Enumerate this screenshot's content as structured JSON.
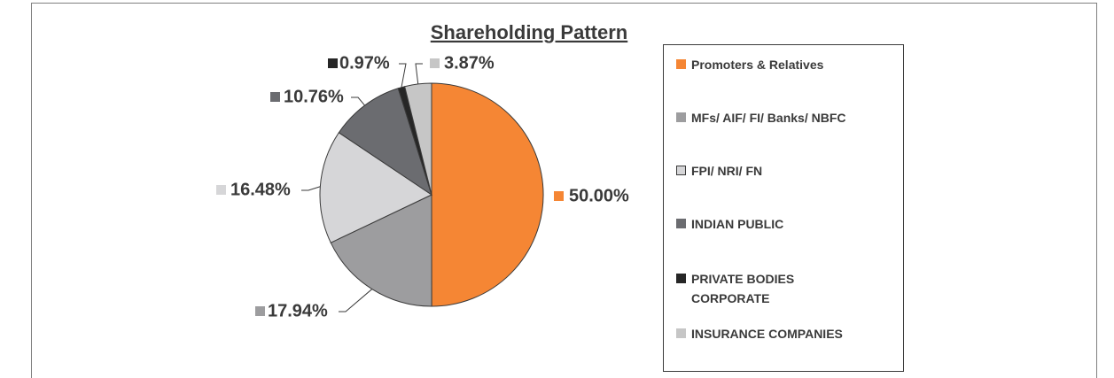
{
  "chart_data": {
    "type": "pie",
    "title": "Shareholding Pattern",
    "categories": [
      "Promoters & Relatives",
      "MFs/ AIF/ FI/ Banks/ NBFC",
      "FPI/ NRI/ FN",
      "INDIAN PUBLIC",
      "PRIVATE BODIES CORPORATE",
      "INSURANCE COMPANIES"
    ],
    "values": [
      50,
      17.94,
      16.48,
      10.76,
      0.97,
      3.87
    ],
    "value_labels": [
      "50.00%",
      "17.94%",
      "16.48%",
      "10.76%",
      "0.97%",
      "3.87%"
    ],
    "colors": [
      "#f58634",
      "#9d9d9f",
      "#d6d6d8",
      "#6b6c70",
      "#262626",
      "#c6c6c6"
    ],
    "legend": "right"
  }
}
